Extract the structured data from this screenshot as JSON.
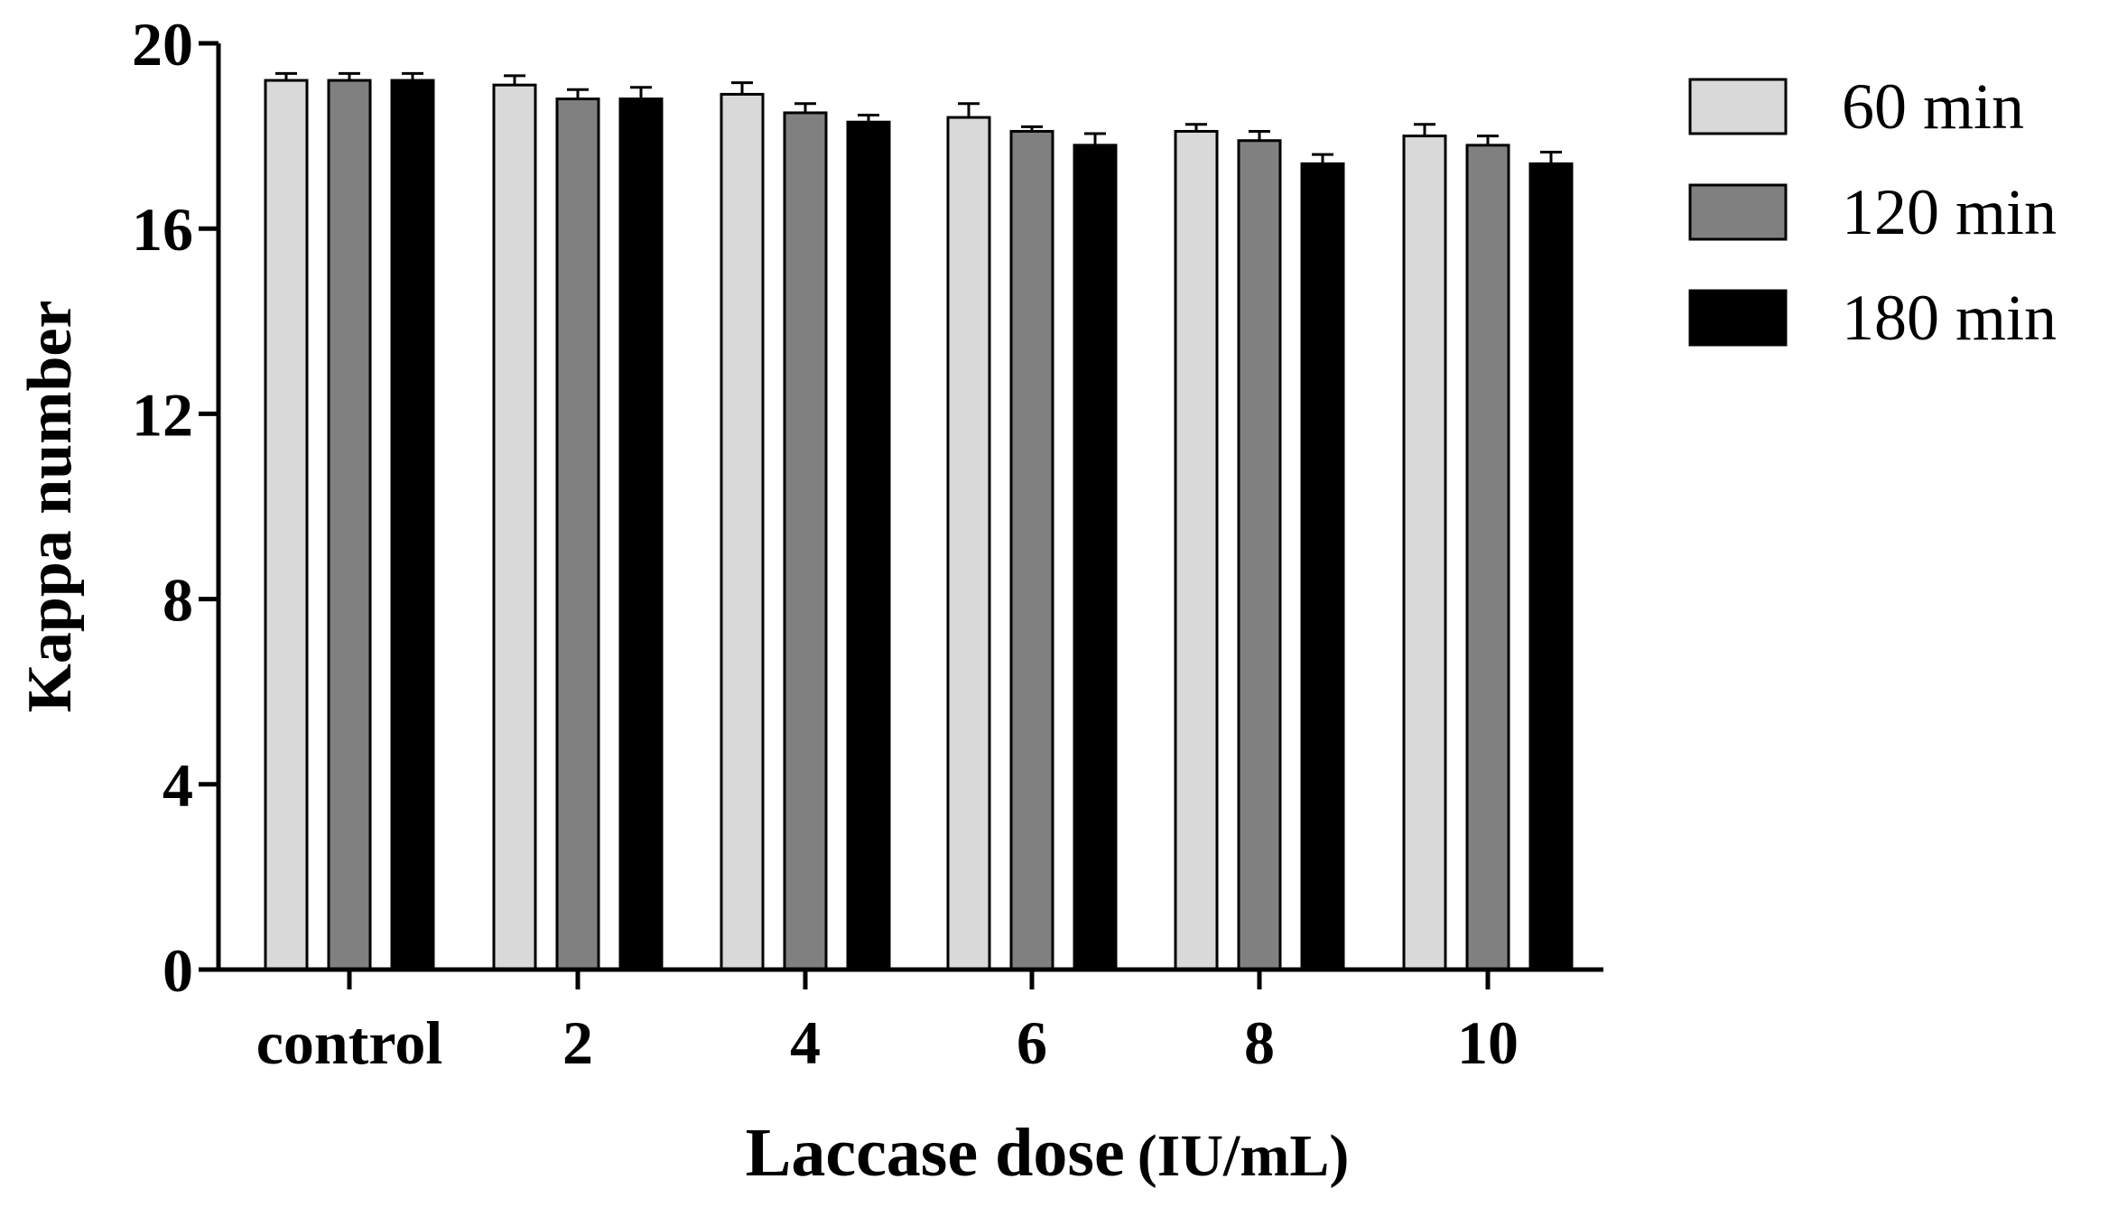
{
  "chart_data": {
    "type": "bar",
    "title": "",
    "xlabel": "Laccase dose",
    "xlabel_unit": "(IU/mL)",
    "ylabel": "Kappa number",
    "ylim": [
      0,
      20
    ],
    "yticks": [
      0,
      4,
      8,
      12,
      16,
      20
    ],
    "categories": [
      "control",
      "2",
      "4",
      "6",
      "8",
      "10"
    ],
    "series": [
      {
        "name": "60 min",
        "color": "#d9d9d9",
        "values": [
          19.2,
          19.1,
          18.9,
          18.4,
          18.1,
          18.0
        ],
        "errors": [
          0.15,
          0.2,
          0.25,
          0.3,
          0.15,
          0.25
        ]
      },
      {
        "name": "120 min",
        "color": "#808080",
        "values": [
          19.2,
          18.8,
          18.5,
          18.1,
          17.9,
          17.8
        ],
        "errors": [
          0.15,
          0.2,
          0.2,
          0.1,
          0.2,
          0.2
        ]
      },
      {
        "name": "180 min",
        "color": "#000000",
        "values": [
          19.2,
          18.8,
          18.3,
          17.8,
          17.4,
          17.4
        ],
        "errors": [
          0.15,
          0.25,
          0.15,
          0.25,
          0.2,
          0.25
        ]
      }
    ],
    "error_bars": true,
    "grid": false,
    "legend_position": "top-right"
  }
}
